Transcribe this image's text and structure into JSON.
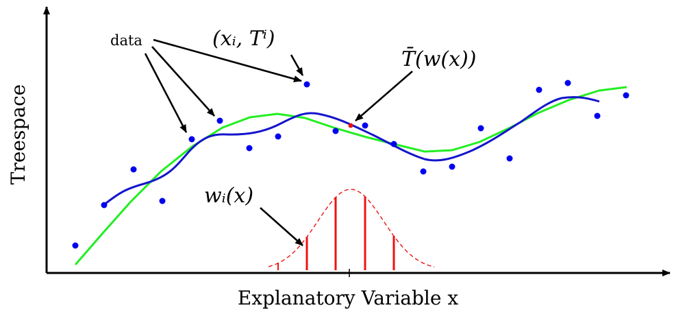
{
  "labels": {
    "x_axis": "Explanatory Variable x",
    "y_axis": "Treespace",
    "data": "data",
    "point": "(xᵢ, Tⁱ)",
    "mean_curve": "T̄(w(x))",
    "weights": "wᵢ(x)"
  },
  "colors": {
    "points": "#0000ee",
    "blue_curve": "#1515cc",
    "green_curve": "#22ee22",
    "weights": "#ee1111",
    "highlight_point": "#ee1111",
    "axes": "#000000"
  }
}
